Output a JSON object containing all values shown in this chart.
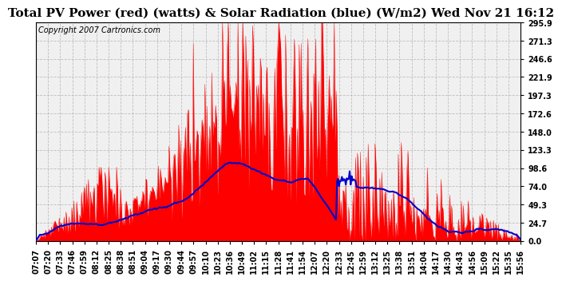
{
  "title": "Total PV Power (red) (watts) & Solar Radiation (blue) (W/m2) Wed Nov 21 16:12",
  "copyright": "Copyright 2007 Cartronics.com",
  "yticks": [
    0.0,
    24.7,
    49.3,
    74.0,
    98.6,
    123.3,
    148.0,
    172.6,
    197.3,
    221.9,
    246.6,
    271.3,
    295.9
  ],
  "ylim": [
    0,
    295.9
  ],
  "xtick_labels": [
    "07:07",
    "07:20",
    "07:33",
    "07:46",
    "07:59",
    "08:12",
    "08:25",
    "08:38",
    "08:51",
    "09:04",
    "09:17",
    "09:30",
    "09:44",
    "09:57",
    "10:10",
    "10:23",
    "10:36",
    "10:49",
    "11:02",
    "11:15",
    "11:28",
    "11:41",
    "11:54",
    "12:07",
    "12:20",
    "12:33",
    "12:45",
    "12:59",
    "13:12",
    "13:25",
    "13:38",
    "13:51",
    "14:04",
    "14:17",
    "14:30",
    "14:43",
    "14:56",
    "15:09",
    "15:22",
    "15:35",
    "15:56"
  ],
  "red_color": "#ff0000",
  "blue_color": "#0000cc",
  "plot_bg_color": "#f0f0f0",
  "grid_color": "#aaaaaa",
  "title_fontsize": 11,
  "copyright_fontsize": 7,
  "tick_fontsize": 7,
  "fig_bg_color": "#ffffff"
}
